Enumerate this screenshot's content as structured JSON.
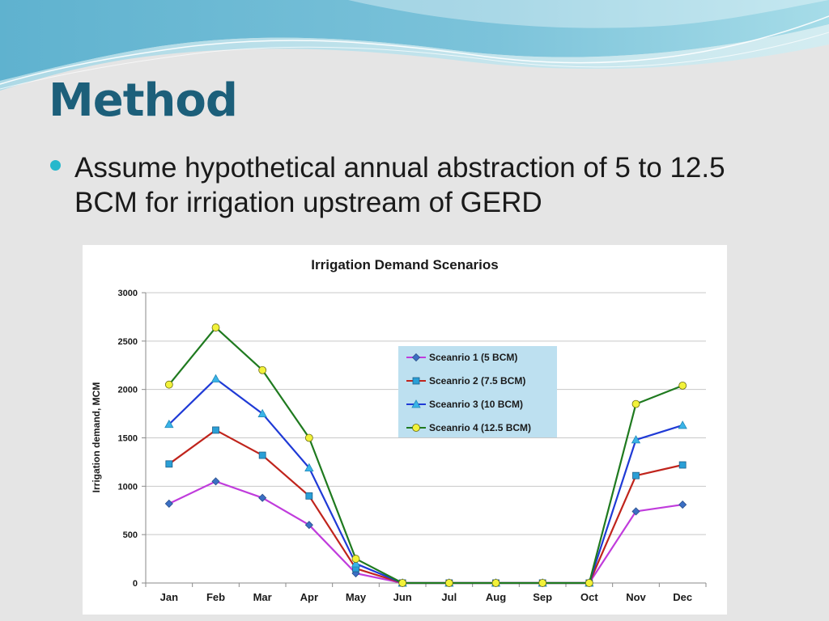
{
  "slide": {
    "title": "Method",
    "bullet": "Assume hypothetical annual abstraction of 5 to 12.5 BCM for irrigation upstream of GERD",
    "colors": {
      "title": "#1c5f7a",
      "bullet": "#27b8cc",
      "background": "#e5e5e5"
    }
  },
  "chart_data": {
    "type": "line",
    "title": "Irrigation Demand Scenarios",
    "xlabel": "",
    "ylabel": "Irrigation demand, MCM",
    "categories": [
      "Jan",
      "Feb",
      "Mar",
      "Apr",
      "May",
      "Jun",
      "Jul",
      "Aug",
      "Sep",
      "Oct",
      "Nov",
      "Dec"
    ],
    "ylim": [
      0,
      3000
    ],
    "yticks": [
      "0",
      "500",
      "1000",
      "1500",
      "2000",
      "2500",
      "3000"
    ],
    "grid": true,
    "legend_position": "center-right",
    "legend_background": "#bde0f0",
    "series": [
      {
        "name": "Sceanrio 1 (5 BCM)",
        "color": "#c03cdc",
        "marker_color": "#3b6fc4",
        "marker": "diamond",
        "values": [
          820,
          1050,
          880,
          600,
          100,
          0,
          0,
          0,
          0,
          0,
          740,
          810
        ]
      },
      {
        "name": "Sceanrio 2 (7.5 BCM)",
        "color": "#c0241c",
        "marker_color": "#2a9fd6",
        "marker": "square",
        "values": [
          1230,
          1580,
          1320,
          900,
          150,
          0,
          0,
          0,
          0,
          0,
          1110,
          1220
        ]
      },
      {
        "name": "Sceanrio 3 (10 BCM)",
        "color": "#1f3ad6",
        "marker_color": "#3ab4e8",
        "marker": "triangle",
        "values": [
          1640,
          2110,
          1750,
          1190,
          200,
          0,
          0,
          0,
          0,
          0,
          1480,
          1630
        ]
      },
      {
        "name": "Sceanrio 4 (12.5 BCM)",
        "color": "#1f7a1f",
        "marker_color": "#f2f23a",
        "marker": "circle",
        "values": [
          2050,
          2640,
          2200,
          1500,
          250,
          0,
          0,
          0,
          0,
          0,
          1850,
          2040
        ]
      }
    ]
  }
}
